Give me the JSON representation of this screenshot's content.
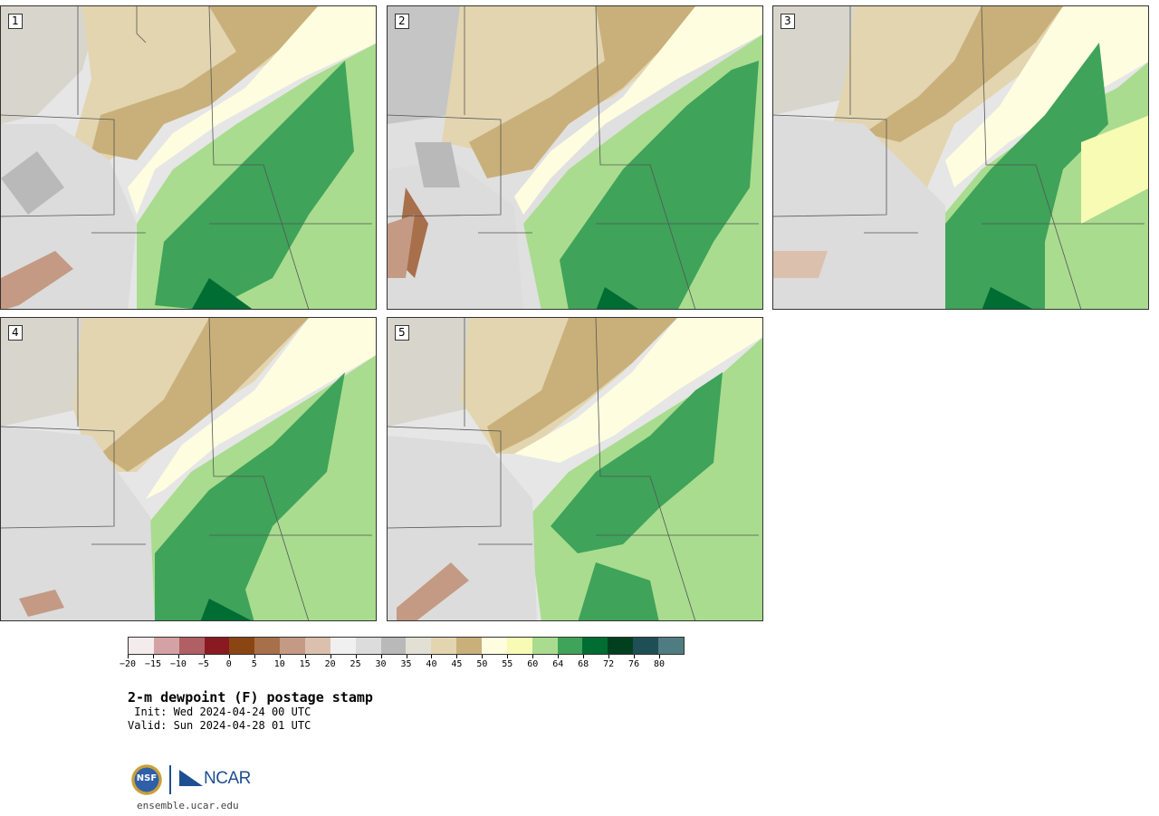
{
  "panels": [
    {
      "label": "1"
    },
    {
      "label": "2"
    },
    {
      "label": "3"
    },
    {
      "label": "4"
    },
    {
      "label": "5"
    }
  ],
  "colorbar": {
    "colors": [
      "#f3ebec",
      "#d4a2a5",
      "#b05f64",
      "#8a1a22",
      "#8b4513",
      "#a86f4b",
      "#c49a84",
      "#dcc0ae",
      "#f0f0f0",
      "#dcdcdc",
      "#b9b9b9",
      "#e2e0d4",
      "#e2d5b0",
      "#c9b07a",
      "#fffde0",
      "#f8fbb4",
      "#a9dc8f",
      "#3fa35a",
      "#006d33",
      "#00401f",
      "#1d4f55",
      "#4f7c80"
    ],
    "tick_labels": [
      "−20",
      "−15",
      "−10",
      "−5",
      "0",
      "5",
      "10",
      "15",
      "20",
      "25",
      "30",
      "35",
      "40",
      "45",
      "50",
      "55",
      "60",
      "64",
      "68",
      "72",
      "76",
      "80"
    ]
  },
  "title": "2-m dewpoint (F) postage stamp",
  "init": " Init: Wed 2024-04-24 00 UTC",
  "valid": "Valid: Sun 2024-04-28 01 UTC",
  "logos": {
    "nsf": "NSF",
    "ncar": "NCAR"
  },
  "site": "ensemble.ucar.edu"
}
